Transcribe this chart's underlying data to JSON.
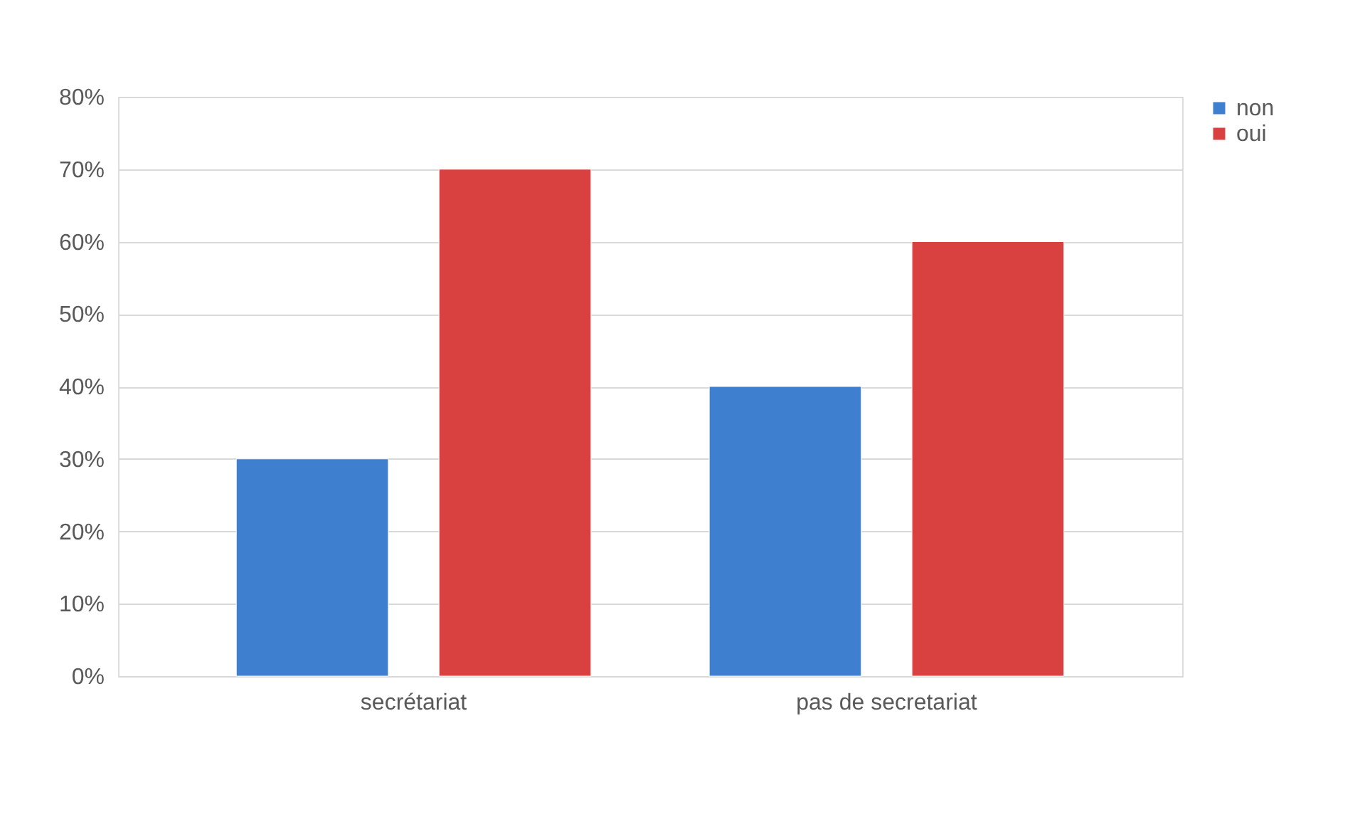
{
  "chart_data": {
    "type": "bar",
    "categories": [
      "secrétariat",
      "pas de secretariat"
    ],
    "series": [
      {
        "name": "non",
        "color": "#3f7fcf",
        "values": [
          30,
          40
        ]
      },
      {
        "name": "oui",
        "color": "#d94040",
        "values": [
          70,
          60
        ]
      }
    ],
    "ylim": [
      0,
      80
    ],
    "yticks": [
      {
        "value": 0,
        "label": "0%"
      },
      {
        "value": 10,
        "label": "10%"
      },
      {
        "value": 20,
        "label": "20%"
      },
      {
        "value": 30,
        "label": "30%"
      },
      {
        "value": 40,
        "label": "40%"
      },
      {
        "value": 50,
        "label": "50%"
      },
      {
        "value": 60,
        "label": "60%"
      },
      {
        "value": 70,
        "label": "70%"
      },
      {
        "value": 80,
        "label": "80%"
      }
    ],
    "grid": "y",
    "legend": "right"
  }
}
